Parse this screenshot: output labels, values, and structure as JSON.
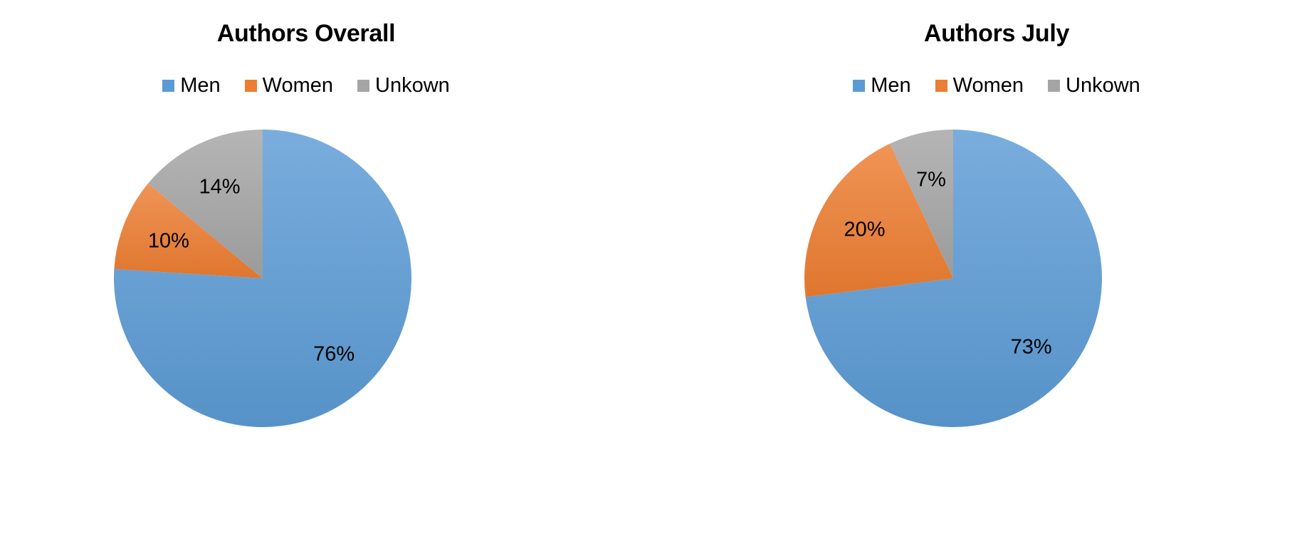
{
  "chart_data": [
    {
      "type": "pie",
      "title": "Authors Overall",
      "categories": [
        "Men",
        "Women",
        "Unkown"
      ],
      "values": [
        76,
        10,
        14
      ],
      "labels": [
        "76%",
        "10%",
        "14%"
      ],
      "colors": [
        "#5b9bd5",
        "#ed7d31",
        "#a5a5a5"
      ],
      "legend": "top",
      "start_angle_deg": 0,
      "direction": "clockwise"
    },
    {
      "type": "pie",
      "title": "Authors July",
      "categories": [
        "Men",
        "Women",
        "Unkown"
      ],
      "values": [
        73,
        20,
        7
      ],
      "labels": [
        "73%",
        "20%",
        "7%"
      ],
      "colors": [
        "#5b9bd5",
        "#ed7d31",
        "#a5a5a5"
      ],
      "legend": "top",
      "start_angle_deg": 0,
      "direction": "clockwise"
    }
  ]
}
